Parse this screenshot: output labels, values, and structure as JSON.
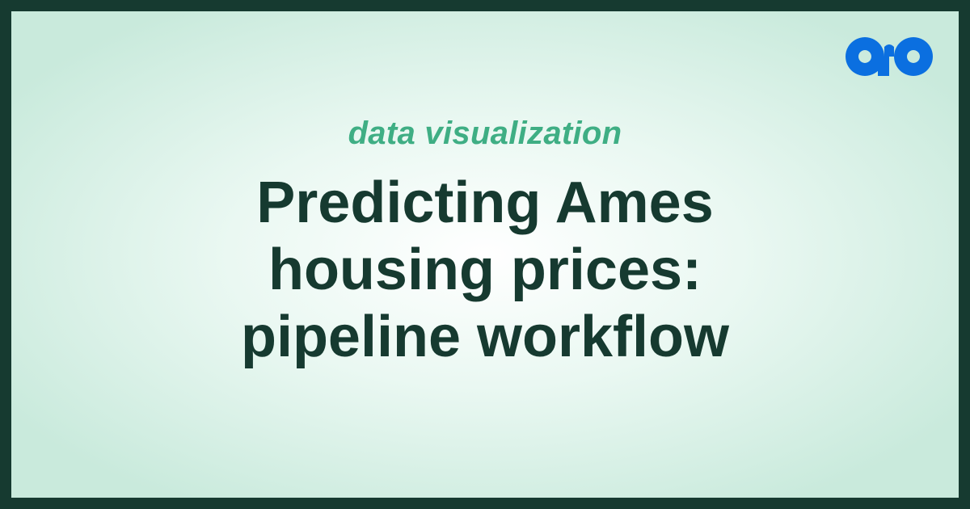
{
  "card": {
    "category": "data visualization",
    "title_lines": [
      "Predicting Ames",
      "housing prices:",
      "pipeline workflow"
    ]
  },
  "brand": {
    "logo_icon": "ao-logo-icon",
    "logo_color": "#0b6fe0"
  },
  "colors": {
    "border": "#163a30",
    "title": "#163a30",
    "category": "#3fae84"
  }
}
